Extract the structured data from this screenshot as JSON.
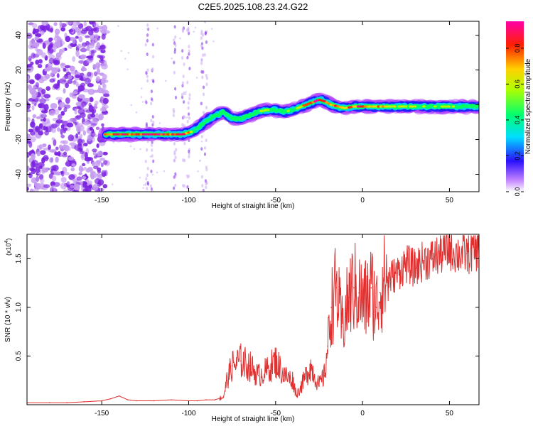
{
  "title": "C2E5.2025.108.23.24.G22",
  "chart_data": [
    {
      "type": "heatmap",
      "xlabel": "Height of straight line (km)",
      "ylabel": "Frequency (Hz)",
      "xlim": [
        -193,
        67
      ],
      "ylim": [
        -50,
        48
      ],
      "xticks": [
        -150,
        -100,
        -50,
        0,
        50
      ],
      "yticks": [
        -40,
        -20,
        0,
        20,
        40
      ],
      "colorbar": {
        "label": "Normalized spectral amplitude",
        "range": [
          0.0,
          0.95
        ],
        "ticks": [
          0.0,
          0.2,
          0.4,
          0.6,
          0.8
        ]
      },
      "ridge": {
        "x": [
          -148,
          -140,
          -130,
          -120,
          -110,
          -103,
          -97,
          -92,
          -88,
          -84,
          -80,
          -75,
          -70,
          -65,
          -60,
          -55,
          -50,
          -45,
          -40,
          -35,
          -30,
          -27,
          -25,
          -22,
          -18,
          -14,
          -10,
          -5,
          0,
          5,
          10,
          20,
          30,
          40,
          50,
          60,
          67
        ],
        "y": [
          -17,
          -17,
          -17,
          -17,
          -17,
          -17,
          -15,
          -11,
          -8,
          -6,
          -4,
          -8,
          -8,
          -6,
          -4,
          -3,
          -3,
          -4,
          -3,
          -1,
          1,
          2,
          3,
          2,
          0,
          -1,
          -2,
          -1,
          -1,
          -1,
          -1,
          -1,
          -1,
          -1,
          -1,
          -1,
          -1
        ],
        "amplitude": [
          0.75,
          0.8,
          0.85,
          0.85,
          0.8,
          0.85,
          0.55,
          0.35,
          0.4,
          0.45,
          0.3,
          0.5,
          0.45,
          0.4,
          0.55,
          0.5,
          0.45,
          0.5,
          0.6,
          0.65,
          0.8,
          0.9,
          0.95,
          0.85,
          0.7,
          0.75,
          0.7,
          0.8,
          0.8,
          0.7,
          0.75,
          0.6,
          0.55,
          0.5,
          0.55,
          0.5,
          0.45
        ]
      }
    },
    {
      "type": "line",
      "xlabel": "Height of straight line (km)",
      "ylabel": "SNR (10 * v/v)",
      "y_multiplier": "(x10",
      "y_multiplier_exp": "4",
      "y_multiplier_close": ")",
      "xlim": [
        -193,
        67
      ],
      "ylim": [
        0,
        1.75
      ],
      "xticks": [
        -150,
        -100,
        -50,
        0,
        50
      ],
      "yticks": [
        "0.5",
        "1.0",
        "1.5"
      ],
      "color": "#e03030",
      "series": [
        {
          "x": [
            -193,
            -180,
            -170,
            -160,
            -150,
            -145,
            -140,
            -135,
            -130,
            -120,
            -110,
            -100,
            -95,
            -90,
            -85,
            -80,
            -78,
            -75,
            -70,
            -65,
            -60,
            -55,
            -50,
            -45,
            -40,
            -38,
            -35,
            -30,
            -25,
            -22,
            -20,
            -18,
            -15,
            -12,
            -10,
            -8,
            -5,
            -2,
            0,
            3,
            5,
            8,
            10,
            12,
            15,
            20,
            25,
            30,
            35,
            40,
            45,
            50,
            55,
            60,
            67
          ],
          "y": [
            0.02,
            0.02,
            0.02,
            0.03,
            0.04,
            0.06,
            0.09,
            0.05,
            0.04,
            0.04,
            0.05,
            0.04,
            0.04,
            0.05,
            0.05,
            0.08,
            0.25,
            0.4,
            0.45,
            0.4,
            0.3,
            0.35,
            0.45,
            0.3,
            0.25,
            0.1,
            0.2,
            0.4,
            0.2,
            0.3,
            0.6,
            1.0,
            1.2,
            0.8,
            0.9,
            1.1,
            1.2,
            1.15,
            1.05,
            1.1,
            1.2,
            1.0,
            1.15,
            1.3,
            1.3,
            1.35,
            1.45,
            1.4,
            1.48,
            1.5,
            1.55,
            1.6,
            1.55,
            1.55,
            1.6
          ]
        }
      ]
    }
  ]
}
